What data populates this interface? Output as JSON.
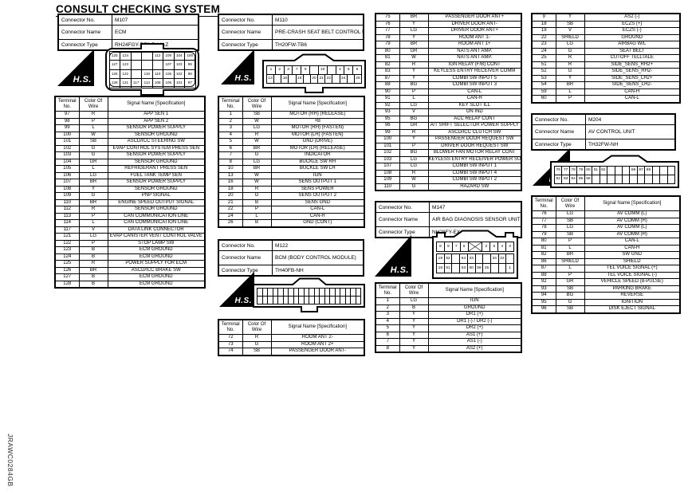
{
  "title": "CONSULT CHECKING SYSTEM",
  "footer_code": "JRAWC0284GB",
  "labels": {
    "connector_no": "Connector No.",
    "connector_name": "Connector Name",
    "connector_type": "Connector Type",
    "terminal": "Terminal",
    "no": "No.",
    "color_of": "Color Of",
    "wire": "Wire",
    "signal": "Signal Name [Specification]",
    "hs": "H.S."
  },
  "connectors": {
    "m107": {
      "no": "M107",
      "name": "ECM",
      "type": "RH24FGY-RZ8-R-LH-Z"
    },
    "m110": {
      "no": "M110",
      "name": "PRE-CRASH SEAT BELT CONTROL UNIT",
      "type": "TH20FW-TB6"
    },
    "m122": {
      "no": "M122",
      "name": "BCM (BODY CONTROL MODULE)",
      "type": "TH40FB-NH"
    },
    "m147": {
      "no": "M147",
      "name": "AIR BAG DIAGNOSIS SENSOR UNIT",
      "type": "NH28FY-EX"
    },
    "m204": {
      "no": "M204",
      "name": "AV CONTROL UNIT",
      "type": "TH32FW-NH"
    }
  },
  "tables": {
    "ecm": [
      [
        "97",
        "R",
        "APP SEN 1"
      ],
      [
        "98",
        "P",
        "APP SEN 2"
      ],
      [
        "99",
        "L",
        "SENSOR POWER SUPPLY"
      ],
      [
        "100",
        "W",
        "SENSOR GROUND"
      ],
      [
        "101",
        "SB",
        "ASCD/ICC STEERING SW"
      ],
      [
        "102",
        "G",
        "EVAP CONTROL SYSTEM PRESS SEN"
      ],
      [
        "103",
        "G",
        "SENSOR POWER SUPPLY"
      ],
      [
        "104",
        "GR",
        "SENSOR GROUND"
      ],
      [
        "105",
        "L",
        "REFRIGERANT PRESS SEN"
      ],
      [
        "106",
        "LG",
        "FUEL TANK TEMP SEN"
      ],
      [
        "107",
        "BR",
        "SENSOR POWER SUPPLY"
      ],
      [
        "108",
        "Y",
        "SENSOR GROUND"
      ],
      [
        "109",
        "G",
        "PNP SIGNAL"
      ],
      [
        "110",
        "BR",
        "ENGINE SPEED OUTPUT SIGNAL"
      ],
      [
        "112",
        "R",
        "SENSOR GROUND"
      ],
      [
        "113",
        "P",
        "CAN COMMUNICATION LINE"
      ],
      [
        "114",
        "L",
        "CAN COMMUNICATION LINE"
      ],
      [
        "117",
        "V",
        "DATA LINK CONNECTOR"
      ],
      [
        "121",
        "LG",
        "EVAP CANISTER VENT CONTROL VALVE"
      ],
      [
        "122",
        "P",
        "STOP LAMP SW"
      ],
      [
        "123",
        "B",
        "ECM GROUND"
      ],
      [
        "124",
        "B",
        "ECM GROUND"
      ],
      [
        "125",
        "R",
        "POWER SUPPLY FOR ECM"
      ],
      [
        "126",
        "BR",
        "ASCD/ICC BRAKE SW"
      ],
      [
        "127",
        "B",
        "ECM GROUND"
      ],
      [
        "128",
        "B",
        "ECM GROUND"
      ]
    ],
    "precrash": [
      [
        "1",
        "SB",
        "MOTOR (RH) (RELEASE)"
      ],
      [
        "2",
        "W",
        "+B"
      ],
      [
        "3",
        "LG",
        "MOTOR (RH) (FASTEN)"
      ],
      [
        "4",
        "R",
        "MOTOR (LH) (FASTEN)"
      ],
      [
        "5",
        "W",
        "GND (DRIVE)"
      ],
      [
        "6",
        "BR",
        "MOTOR (LH) (RELEASE)"
      ],
      [
        "7",
        "G",
        "INDICATOR"
      ],
      [
        "8",
        "LG",
        "BUCKLE SW RH"
      ],
      [
        "10",
        "BR",
        "BUCKLE SW LH"
      ],
      [
        "13",
        "W",
        "IGN"
      ],
      [
        "16",
        "W",
        "SENS OUTPUT 1"
      ],
      [
        "18",
        "R",
        "SENS POWER"
      ],
      [
        "20",
        "G",
        "SENS OUTPUT 2"
      ],
      [
        "21",
        "B",
        "SENS GND"
      ],
      [
        "22",
        "P",
        "CAN-L"
      ],
      [
        "24",
        "L",
        "CAN-H"
      ],
      [
        "26",
        "B",
        "GND (CONT)"
      ]
    ],
    "bcm1": [
      [
        "72",
        "R",
        "ROOM ANT 2-"
      ],
      [
        "73",
        "G",
        "ROOM ANT 2+"
      ],
      [
        "74",
        "SB",
        "PASSENGER DOOR ANT-"
      ]
    ],
    "bcm2": [
      [
        "75",
        "BR",
        "PASSENGER DOOR ANT+"
      ],
      [
        "76",
        "Y",
        "DRIVER DOOR ANT-"
      ],
      [
        "77",
        "LG",
        "DRIVER DOOR ANT+"
      ],
      [
        "78",
        "Y",
        "ROOM ANT 1-"
      ],
      [
        "79",
        "BR",
        "ROOM ANT 1+"
      ],
      [
        "80",
        "GR",
        "NATS ANT AMP."
      ],
      [
        "81",
        "W",
        "NATS ANT AMP."
      ],
      [
        "82",
        "R",
        "IGN RELAY (F/B) CONT"
      ],
      [
        "83",
        "Y",
        "KEYLESS ENTRY RECEIVER COMM"
      ],
      [
        "87",
        "Y",
        "COMBI SW INPUT 5"
      ],
      [
        "88",
        "BG",
        "COMBI SW INPUT 3"
      ],
      [
        "90",
        "P",
        "CAN-L"
      ],
      [
        "91",
        "L",
        "CAN-H"
      ],
      [
        "92",
        "LG",
        "KEY SLOT ILL"
      ],
      [
        "93",
        "V",
        "ON IND"
      ],
      [
        "95",
        "BG",
        "ACC RELAY CONT"
      ],
      [
        "96",
        "GR",
        "A/T SHIFT SELECTOR POWER SUPPLY"
      ],
      [
        "99",
        "R",
        "ASCD/ICC CLUTCH SW"
      ],
      [
        "100",
        "Y",
        "PASSENGER DOOR REQUEST SW"
      ],
      [
        "101",
        "P",
        "DRIVER DOOR REQUEST SW"
      ],
      [
        "102",
        "BG",
        "BLOWER FAN MOTOR RELAY CONT"
      ],
      [
        "103",
        "LG",
        "KEYLESS ENTRY RECEIVER POWER SUPPLY"
      ],
      [
        "107",
        "LG",
        "COMBI SW INPUT 1"
      ],
      [
        "108",
        "R",
        "COMBI SW INPUT 4"
      ],
      [
        "109",
        "W",
        "COMBI SW INPUT 2"
      ],
      [
        "110",
        "G",
        "HAZARD SW"
      ]
    ],
    "airbag1": [
      [
        "1",
        "LG",
        "IGN"
      ],
      [
        "2",
        "B",
        "GROUND"
      ],
      [
        "3",
        "Y",
        "DR1 (+)"
      ],
      [
        "4",
        "Y",
        "DR1 (-) / DR2 (-)"
      ],
      [
        "5",
        "Y",
        "DR2 (+)"
      ],
      [
        "6",
        "Y",
        "AS1 (+)"
      ],
      [
        "7",
        "Y",
        "AS1 (-)"
      ],
      [
        "8",
        "Y",
        "AS2 (+)"
      ]
    ],
    "airbag2": [
      [
        "9",
        "Y",
        "AS2 (-)"
      ],
      [
        "18",
        "SB",
        "ECZS (+)"
      ],
      [
        "19",
        "V",
        "ECZS (-)"
      ],
      [
        "22",
        "SHIELD",
        "GROUND"
      ],
      [
        "23",
        "LG",
        "AIRBAG W/L"
      ],
      [
        "24",
        "G",
        "SEAT BELT"
      ],
      [
        "25",
        "R",
        "CUTOFF TELLTALE"
      ],
      [
        "51",
        "R",
        "SIDE_SENS_RH2+"
      ],
      [
        "52",
        "G",
        "SIDE_SENS_RH2-"
      ],
      [
        "53",
        "Y",
        "SIDE_SENS_LH2+"
      ],
      [
        "54",
        "BR",
        "SIDE_SENS_LH2-"
      ],
      [
        "59",
        "L",
        "CAN-H"
      ],
      [
        "60",
        "P",
        "CAN-L"
      ]
    ],
    "av": [
      [
        "76",
        "LG",
        "AV COMM (L)"
      ],
      [
        "77",
        "SB",
        "AV COMM (H)"
      ],
      [
        "78",
        "LG",
        "AV COMM (L)"
      ],
      [
        "79",
        "SB",
        "AV COMM (H)"
      ],
      [
        "80",
        "P",
        "CAN-L"
      ],
      [
        "81",
        "L",
        "CAN-H"
      ],
      [
        "82",
        "BR",
        "SW GND"
      ],
      [
        "86",
        "SHIELD",
        "SHIELD"
      ],
      [
        "87",
        "L",
        "TEL VOICE SIGNAL (+)"
      ],
      [
        "88",
        "P",
        "TEL VOICE SIGNAL (-)"
      ],
      [
        "92",
        "GR",
        "VEHICLE SPEED (8-PULSE)"
      ],
      [
        "93",
        "SB",
        "PARKING BRAKE"
      ],
      [
        "94",
        "BG",
        "REVERSE"
      ],
      [
        "95",
        "G",
        "IGNITION"
      ],
      [
        "96",
        "SB",
        "DISK EJECT SIGNAL"
      ]
    ]
  },
  "drawings": {
    "m107_grid": [
      [
        "125",
        "124",
        "",
        "",
        "112",
        "109",
        "104",
        "100"
      ],
      [
        "127",
        "123",
        "",
        "",
        "",
        "107",
        "103",
        "99"
      ],
      [
        "126",
        "122",
        "",
        "118",
        "110",
        "106",
        "102",
        "98"
      ],
      [
        "128",
        "121",
        "117",
        "113",
        "108",
        "105",
        "101",
        "97"
      ]
    ],
    "m110_top": [
      "1",
      "2",
      "3",
      "7",
      "8",
      "",
      "10",
      "",
      "4",
      "5",
      "6"
    ],
    "m110_bottom": [
      "13",
      "",
      "16",
      "",
      "18",
      "",
      "20",
      "21",
      "22",
      "",
      "24",
      "",
      "26"
    ],
    "m122_top": [
      "",
      "",
      "",
      "",
      "",
      "",
      "",
      "",
      "",
      "",
      "",
      "",
      "",
      "",
      "",
      "",
      "",
      "",
      "",
      ""
    ],
    "m122_bottom": [
      "",
      "",
      "",
      "",
      "",
      "",
      "",
      "",
      "",
      "",
      "",
      "",
      "",
      "",
      "",
      "",
      "",
      "",
      "",
      ""
    ],
    "m147_top": [
      "8",
      "9",
      "7",
      "6",
      "X",
      "2",
      "5",
      "4",
      "3"
    ],
    "m147_mid": [
      "19",
      "52",
      "",
      "54",
      "23",
      "",
      "",
      "34",
      "22",
      ""
    ],
    "m147_bottom": [
      "18",
      "51",
      "",
      "53",
      "60",
      "59",
      "25",
      "",
      "",
      "1"
    ],
    "m204_top": [
      "76",
      "77",
      "78",
      "79",
      "80",
      "81",
      "82",
      "",
      "",
      "",
      "86",
      "87",
      "88",
      "",
      "",
      ""
    ],
    "m204_bottom": [
      "92",
      "93",
      "94",
      "95",
      "96",
      "",
      "",
      "",
      "",
      "",
      "",
      "",
      "",
      "",
      "",
      ""
    ]
  }
}
